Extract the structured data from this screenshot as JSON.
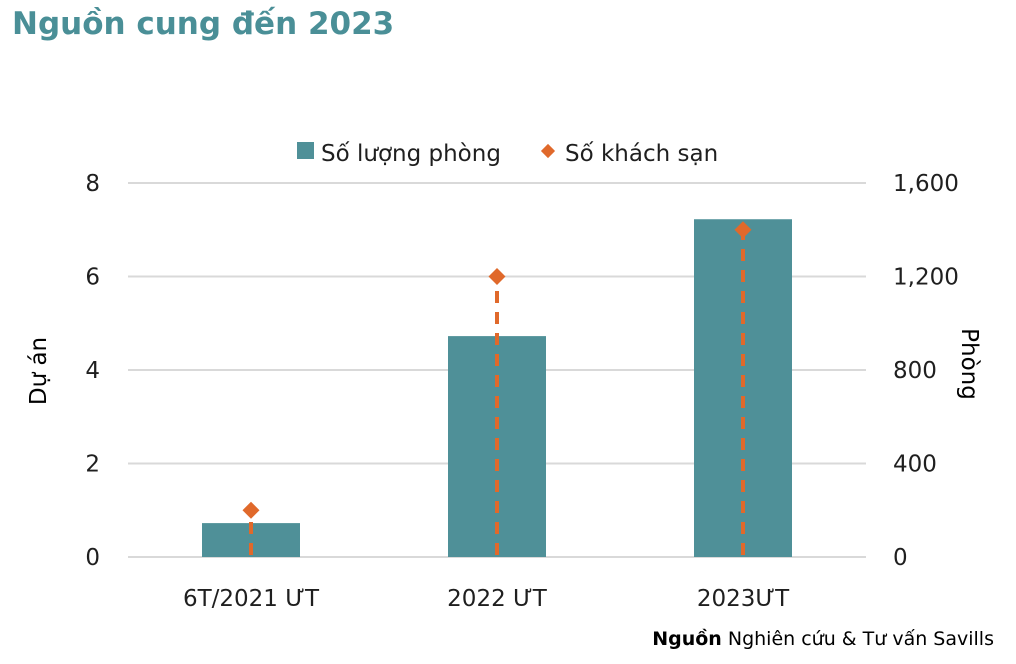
{
  "page_title": "Nguồn cung đến 2023",
  "source": {
    "label": "Nguồn",
    "text": "Nghiên cứu & Tư vấn Savills"
  },
  "chart_data": {
    "type": "bar",
    "title": "Nguồn cung đến 2023",
    "categories": [
      "6T/2021 ƯT",
      "2022 ƯT",
      "2023ƯT"
    ],
    "series": [
      {
        "name": "Số lượng phòng",
        "kind": "bar",
        "axis": "right",
        "color": "#4f9098",
        "values": [
          145,
          945,
          1445
        ]
      },
      {
        "name": "Số khách sạn",
        "kind": "marker",
        "axis": "left",
        "color": "#e0692b",
        "values": [
          1,
          6,
          7
        ]
      }
    ],
    "y_left": {
      "label": "Dự án",
      "range": [
        0,
        8
      ],
      "ticks": [
        "0",
        "2",
        "4",
        "6",
        "8"
      ]
    },
    "y_right": {
      "label": "Phòng",
      "range": [
        0,
        1600
      ],
      "ticks": [
        "0",
        "400",
        "800",
        "1,200",
        "1,600"
      ]
    },
    "grid": true,
    "legend_position": "top"
  }
}
